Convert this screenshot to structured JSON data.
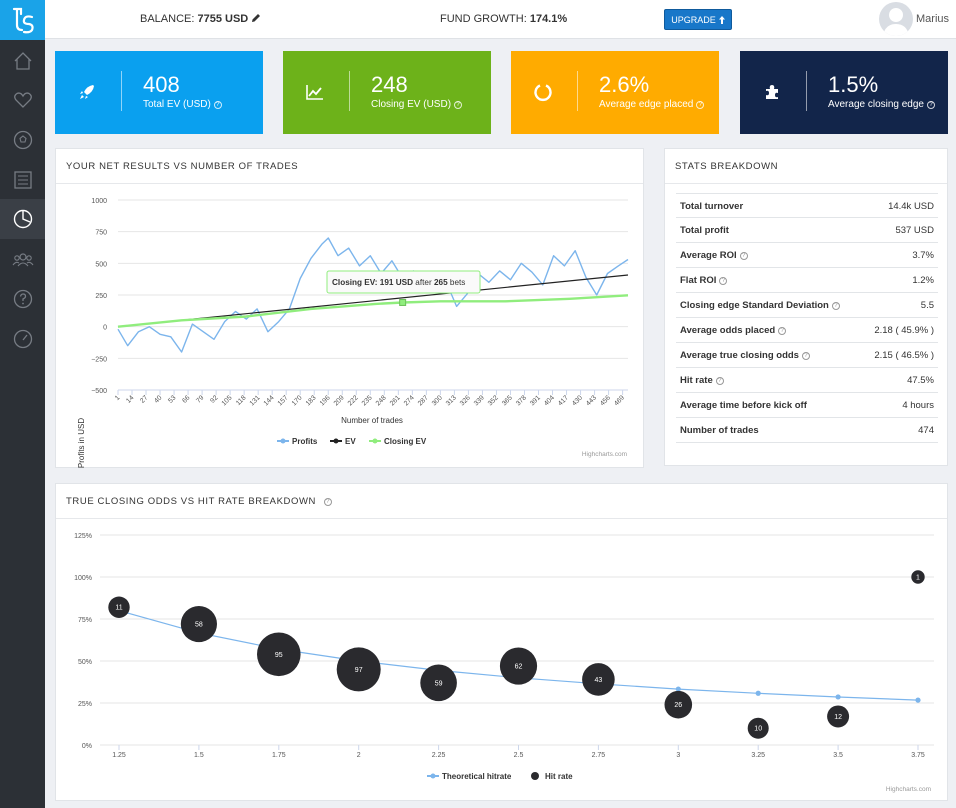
{
  "topbar": {
    "balance_label": "BALANCE:",
    "balance_value": "7755 USD",
    "growth_label": "FUND GROWTH:",
    "growth_value": "174.1%",
    "upgrade_label": "UPGRADE",
    "username": "Marius"
  },
  "kpis": [
    {
      "value": "408",
      "label": "Total EV (USD)",
      "color": "#0aa0ef",
      "icon": "rocket-icon"
    },
    {
      "value": "248",
      "label": "Closing EV (USD)",
      "color": "#6db21a",
      "icon": "line-chart-icon"
    },
    {
      "value": "2.6%",
      "label": "Average edge placed",
      "color": "#ffab00",
      "icon": "circle-notch-icon"
    },
    {
      "value": "1.5%",
      "label": "Average closing edge",
      "color": "#12254a",
      "icon": "puzzle-icon"
    }
  ],
  "net_results": {
    "title": "YOUR NET RESULTS VS NUMBER OF TRADES",
    "tooltip_prefix": "Closing EV:",
    "tooltip_value": "191 USD",
    "tooltip_mid": "after",
    "tooltip_count": "265",
    "tooltip_suffix": "bets",
    "credits": "Highcharts.com"
  },
  "stats": {
    "title": "STATS BREAKDOWN",
    "rows": [
      {
        "label": "Total turnover",
        "value": "14.4k USD",
        "help": false
      },
      {
        "label": "Total profit",
        "value": "537 USD",
        "help": false
      },
      {
        "label": "Average ROI",
        "value": "3.7%",
        "help": true
      },
      {
        "label": "Flat ROI",
        "value": "1.2%",
        "help": true
      },
      {
        "label": "Closing edge Standard Deviation",
        "value": "5.5",
        "help": true
      },
      {
        "label": "Average odds placed",
        "value": "2.18 ( 45.9% )",
        "help": true
      },
      {
        "label": "Average true closing odds",
        "value": "2.15 ( 46.5% )",
        "help": true
      },
      {
        "label": "Hit rate",
        "value": "47.5%",
        "help": true
      },
      {
        "label": "Average time before kick off",
        "value": "4 hours",
        "help": false
      },
      {
        "label": "Number of trades",
        "value": "474",
        "help": false
      }
    ]
  },
  "odds_panel": {
    "title": "TRUE CLOSING ODDS VS HIT RATE BREAKDOWN",
    "credits": "Highcharts.com"
  },
  "chart_data": [
    {
      "type": "line",
      "xlabel": "Number of trades",
      "ylabel": "Profits in USD",
      "ylim": [
        -500,
        1000
      ],
      "yticks": [
        "1000",
        "750",
        "500",
        "250",
        "0",
        "−250",
        "−500"
      ],
      "xticks": [
        "1",
        "14",
        "27",
        "40",
        "53",
        "66",
        "79",
        "92",
        "105",
        "118",
        "131",
        "144",
        "157",
        "170",
        "183",
        "196",
        "209",
        "222",
        "235",
        "248",
        "261",
        "274",
        "287",
        "300",
        "313",
        "326",
        "339",
        "352",
        "365",
        "378",
        "391",
        "404",
        "417",
        "430",
        "443",
        "456",
        "469"
      ],
      "xlim": [
        1,
        474
      ],
      "grid": true,
      "legend_position": "bottom",
      "series": [
        {
          "name": "Profits",
          "color": "#7cb5ec",
          "x": [
            1,
            10,
            20,
            30,
            40,
            50,
            60,
            70,
            80,
            90,
            100,
            110,
            120,
            130,
            140,
            150,
            160,
            170,
            180,
            190,
            196,
            205,
            215,
            225,
            235,
            245,
            255,
            265,
            275,
            285,
            295,
            305,
            315,
            325,
            335,
            345,
            355,
            365,
            375,
            385,
            395,
            405,
            415,
            425,
            435,
            445,
            455,
            465,
            474
          ],
          "values": [
            -20,
            -150,
            -40,
            0,
            -60,
            -80,
            -200,
            20,
            -40,
            -100,
            40,
            120,
            60,
            140,
            -40,
            40,
            140,
            380,
            540,
            650,
            700,
            560,
            620,
            480,
            560,
            420,
            520,
            380,
            440,
            340,
            420,
            360,
            160,
            260,
            420,
            350,
            440,
            370,
            500,
            430,
            330,
            560,
            480,
            600,
            390,
            250,
            420,
            480,
            530
          ]
        },
        {
          "name": "EV",
          "color": "#222222",
          "x": [
            1,
            474
          ],
          "values": [
            0,
            408
          ]
        },
        {
          "name": "Closing EV",
          "color": "#90ed7d",
          "x": [
            1,
            60,
            120,
            180,
            240,
            265,
            300,
            360,
            420,
            474
          ],
          "values": [
            0,
            50,
            80,
            140,
            180,
            191,
            200,
            200,
            220,
            248
          ]
        }
      ]
    },
    {
      "type": "scatter",
      "xlabel": "",
      "ylabel": "",
      "ylim": [
        0,
        125
      ],
      "yticks": [
        "125%",
        "100%",
        "75%",
        "50%",
        "25%",
        "0%"
      ],
      "xticks": [
        "1.25",
        "1.5",
        "1.75",
        "2",
        "2.25",
        "2.5",
        "2.75",
        "3",
        "3.25",
        "3.5",
        "3.75"
      ],
      "xlim": [
        1.25,
        3.75
      ],
      "grid": true,
      "legend_position": "bottom",
      "series": [
        {
          "name": "Theoretical hitrate",
          "color": "#7cb5ec",
          "x": [
            1.25,
            1.5,
            1.75,
            2,
            2.25,
            2.5,
            2.75,
            3,
            3.25,
            3.5,
            3.75
          ],
          "values": [
            80,
            66.7,
            57.1,
            50,
            44.4,
            40,
            36.4,
            33.3,
            30.8,
            28.6,
            26.7
          ]
        },
        {
          "name": "Hit rate",
          "color": "#2a2a2e",
          "x": [
            1.25,
            1.5,
            1.75,
            2,
            2.25,
            2.5,
            2.75,
            3,
            3.25,
            3.5,
            3.75
          ],
          "values": [
            82,
            72,
            54,
            45,
            37,
            47,
            39,
            24,
            10,
            17,
            100
          ],
          "counts": [
            "11",
            "58",
            "95",
            "97",
            "59",
            "62",
            "43",
            "26",
            "10",
            "12",
            "1"
          ]
        }
      ]
    }
  ]
}
